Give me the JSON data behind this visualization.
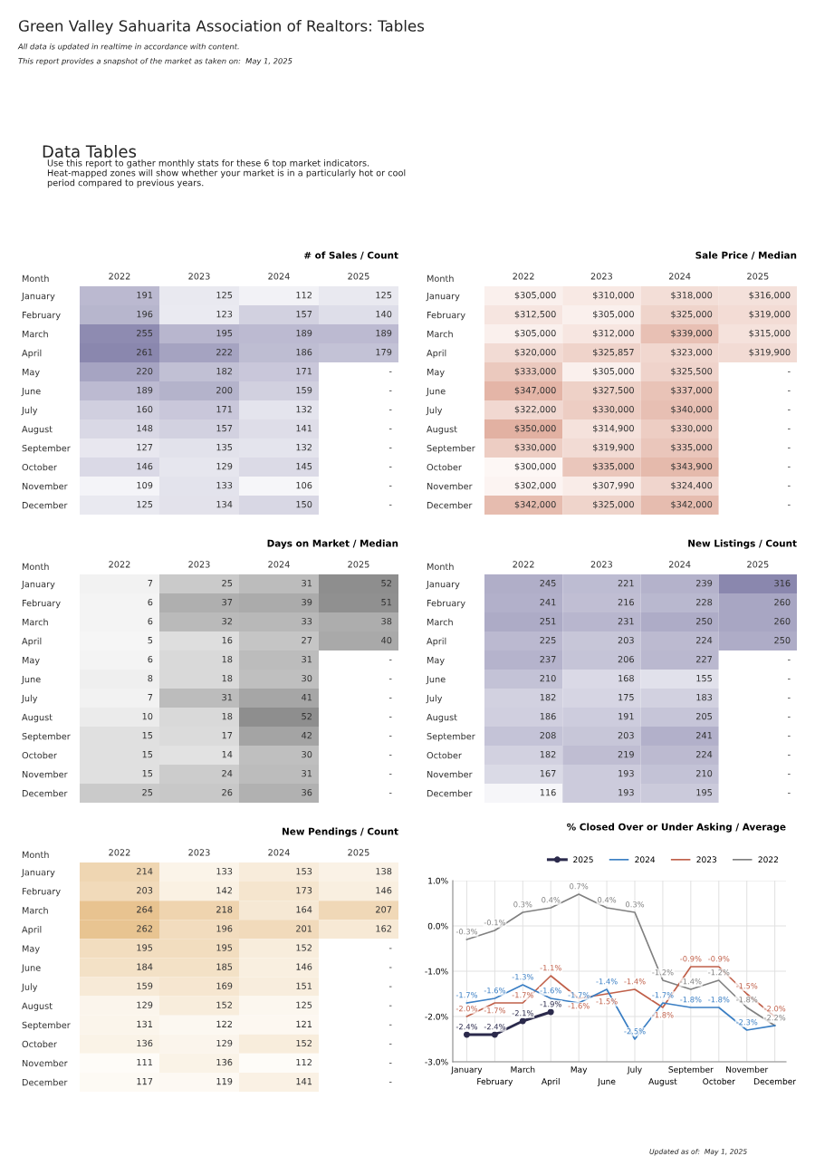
{
  "chart_data": [
    {
      "type": "other",
      "title": "Green Valley Sahuarita Association of Realtors: Tables",
      "annotations": [
        "All data is updated in realtime in accordance with content.",
        "This report provides a snapshot of the market as taken on:  May 1, 2025",
        "Data Tables",
        "Use this report to gather monthly stats for these 6 top market indicators.  Heat-mapped zones will show whether your market is in a particularly hot or cool period compared to previous years.",
        "Updated as of:  May 1, 2025"
      ]
    },
    {
      "type": "heatmap",
      "title": "# of Sales / Count",
      "ylabel": "Month",
      "colors": [
        "#f6f6f9",
        "#8a87ae"
      ],
      "categories": [
        "2022",
        "2023",
        "2024",
        "2025"
      ],
      "y_categories": [
        "January",
        "February",
        "March",
        "April",
        "May",
        "June",
        "July",
        "August",
        "September",
        "October",
        "November",
        "December"
      ],
      "cells": [
        [
          191,
          125,
          112,
          125
        ],
        [
          196,
          123,
          157,
          140
        ],
        [
          255,
          195,
          189,
          189
        ],
        [
          261,
          222,
          186,
          179
        ],
        [
          220,
          182,
          171,
          null
        ],
        [
          189,
          200,
          159,
          null
        ],
        [
          160,
          171,
          132,
          null
        ],
        [
          148,
          157,
          141,
          null
        ],
        [
          127,
          135,
          132,
          null
        ],
        [
          146,
          129,
          145,
          null
        ],
        [
          109,
          133,
          106,
          null
        ],
        [
          125,
          134,
          150,
          null
        ]
      ],
      "cell_labels": [
        [
          "191",
          "125",
          "112",
          "125"
        ],
        [
          "196",
          "123",
          "157",
          "140"
        ],
        [
          "255",
          "195",
          "189",
          "189"
        ],
        [
          "261",
          "222",
          "186",
          "179"
        ],
        [
          "220",
          "182",
          "171",
          "-"
        ],
        [
          "189",
          "200",
          "159",
          "-"
        ],
        [
          "160",
          "171",
          "132",
          "-"
        ],
        [
          "148",
          "157",
          "141",
          "-"
        ],
        [
          "127",
          "135",
          "132",
          "-"
        ],
        [
          "146",
          "129",
          "145",
          "-"
        ],
        [
          "109",
          "133",
          "106",
          "-"
        ],
        [
          "125",
          "134",
          "150",
          "-"
        ]
      ]
    },
    {
      "type": "heatmap",
      "title": "Sale Price / Median",
      "ylabel": "Month",
      "colors": [
        "#fdf7f5",
        "#e2b1a2"
      ],
      "categories": [
        "2022",
        "2023",
        "2024",
        "2025"
      ],
      "y_categories": [
        "January",
        "February",
        "March",
        "April",
        "May",
        "June",
        "July",
        "August",
        "September",
        "October",
        "November",
        "December"
      ],
      "cells": [
        [
          305000,
          310000,
          318000,
          316000
        ],
        [
          312500,
          305000,
          325000,
          319000
        ],
        [
          305000,
          312000,
          339000,
          315000
        ],
        [
          320000,
          325857,
          323000,
          319900
        ],
        [
          333000,
          305000,
          325500,
          null
        ],
        [
          347000,
          327500,
          337000,
          null
        ],
        [
          322000,
          330000,
          340000,
          null
        ],
        [
          350000,
          314900,
          330000,
          null
        ],
        [
          330000,
          319900,
          335000,
          null
        ],
        [
          300000,
          335000,
          343900,
          null
        ],
        [
          302000,
          307990,
          324400,
          null
        ],
        [
          342000,
          325000,
          342000,
          null
        ]
      ],
      "cell_labels": [
        [
          "$305,000",
          "$310,000",
          "$318,000",
          "$316,000"
        ],
        [
          "$312,500",
          "$305,000",
          "$325,000",
          "$319,000"
        ],
        [
          "$305,000",
          "$312,000",
          "$339,000",
          "$315,000"
        ],
        [
          "$320,000",
          "$325,857",
          "$323,000",
          "$319,900"
        ],
        [
          "$333,000",
          "$305,000",
          "$325,500",
          "-"
        ],
        [
          "$347,000",
          "$327,500",
          "$337,000",
          "-"
        ],
        [
          "$322,000",
          "$330,000",
          "$340,000",
          "-"
        ],
        [
          "$350,000",
          "$314,900",
          "$330,000",
          "-"
        ],
        [
          "$330,000",
          "$319,900",
          "$335,000",
          "-"
        ],
        [
          "$300,000",
          "$335,000",
          "$343,900",
          "-"
        ],
        [
          "$302,000",
          "$307,990",
          "$324,400",
          "-"
        ],
        [
          "$342,000",
          "$325,000",
          "$342,000",
          "-"
        ]
      ]
    },
    {
      "type": "heatmap",
      "title": "Days on Market / Median",
      "ylabel": "Month",
      "colors": [
        "#f6f6f6",
        "#8e8e8e"
      ],
      "categories": [
        "2022",
        "2023",
        "2024",
        "2025"
      ],
      "y_categories": [
        "January",
        "February",
        "March",
        "April",
        "May",
        "June",
        "July",
        "August",
        "September",
        "October",
        "November",
        "December"
      ],
      "cells": [
        [
          7,
          25,
          31,
          52
        ],
        [
          6,
          37,
          39,
          51
        ],
        [
          6,
          32,
          33,
          38
        ],
        [
          5,
          16,
          27,
          40
        ],
        [
          6,
          18,
          31,
          null
        ],
        [
          8,
          18,
          30,
          null
        ],
        [
          7,
          31,
          41,
          null
        ],
        [
          10,
          18,
          52,
          null
        ],
        [
          15,
          17,
          42,
          null
        ],
        [
          15,
          14,
          30,
          null
        ],
        [
          15,
          24,
          31,
          null
        ],
        [
          25,
          26,
          36,
          null
        ]
      ],
      "cell_labels": [
        [
          "7",
          "25",
          "31",
          "52"
        ],
        [
          "6",
          "37",
          "39",
          "51"
        ],
        [
          "6",
          "32",
          "33",
          "38"
        ],
        [
          "5",
          "16",
          "27",
          "40"
        ],
        [
          "6",
          "18",
          "31",
          "-"
        ],
        [
          "8",
          "18",
          "30",
          "-"
        ],
        [
          "7",
          "31",
          "41",
          "-"
        ],
        [
          "10",
          "18",
          "52",
          "-"
        ],
        [
          "15",
          "17",
          "42",
          "-"
        ],
        [
          "15",
          "14",
          "30",
          "-"
        ],
        [
          "15",
          "24",
          "31",
          "-"
        ],
        [
          "25",
          "26",
          "36",
          "-"
        ]
      ]
    },
    {
      "type": "heatmap",
      "title": "New Listings / Count",
      "ylabel": "Month",
      "colors": [
        "#f6f6f9",
        "#8a87ae"
      ],
      "categories": [
        "2022",
        "2023",
        "2024",
        "2025"
      ],
      "y_categories": [
        "January",
        "February",
        "March",
        "April",
        "May",
        "June",
        "July",
        "August",
        "September",
        "October",
        "November",
        "December"
      ],
      "cells": [
        [
          245,
          221,
          239,
          316
        ],
        [
          241,
          216,
          228,
          260
        ],
        [
          251,
          231,
          250,
          260
        ],
        [
          225,
          203,
          224,
          250
        ],
        [
          237,
          206,
          227,
          null
        ],
        [
          210,
          168,
          155,
          null
        ],
        [
          182,
          175,
          183,
          null
        ],
        [
          186,
          191,
          205,
          null
        ],
        [
          208,
          203,
          241,
          null
        ],
        [
          182,
          219,
          224,
          null
        ],
        [
          167,
          193,
          210,
          null
        ],
        [
          116,
          193,
          195,
          null
        ]
      ],
      "cell_labels": [
        [
          "245",
          "221",
          "239",
          "316"
        ],
        [
          "241",
          "216",
          "228",
          "260"
        ],
        [
          "251",
          "231",
          "250",
          "260"
        ],
        [
          "225",
          "203",
          "224",
          "250"
        ],
        [
          "237",
          "206",
          "227",
          "-"
        ],
        [
          "210",
          "168",
          "155",
          "-"
        ],
        [
          "182",
          "175",
          "183",
          "-"
        ],
        [
          "186",
          "191",
          "205",
          "-"
        ],
        [
          "208",
          "203",
          "241",
          "-"
        ],
        [
          "182",
          "219",
          "224",
          "-"
        ],
        [
          "167",
          "193",
          "210",
          "-"
        ],
        [
          "116",
          "193",
          "195",
          "-"
        ]
      ]
    },
    {
      "type": "heatmap",
      "title": "New Pendings / Count",
      "ylabel": "Month",
      "colors": [
        "#fefcf8",
        "#e8c390"
      ],
      "categories": [
        "2022",
        "2023",
        "2024",
        "2025"
      ],
      "y_categories": [
        "January",
        "February",
        "March",
        "April",
        "May",
        "June",
        "July",
        "August",
        "September",
        "October",
        "November",
        "December"
      ],
      "cells": [
        [
          214,
          133,
          153,
          138
        ],
        [
          203,
          142,
          173,
          146
        ],
        [
          264,
          218,
          164,
          207
        ],
        [
          262,
          196,
          201,
          162
        ],
        [
          195,
          195,
          152,
          null
        ],
        [
          184,
          185,
          146,
          null
        ],
        [
          159,
          169,
          151,
          null
        ],
        [
          129,
          152,
          125,
          null
        ],
        [
          131,
          122,
          121,
          null
        ],
        [
          136,
          129,
          152,
          null
        ],
        [
          111,
          136,
          112,
          null
        ],
        [
          117,
          119,
          141,
          null
        ]
      ],
      "cell_labels": [
        [
          "214",
          "133",
          "153",
          "138"
        ],
        [
          "203",
          "142",
          "173",
          "146"
        ],
        [
          "264",
          "218",
          "164",
          "207"
        ],
        [
          "262",
          "196",
          "201",
          "162"
        ],
        [
          "195",
          "195",
          "152",
          "-"
        ],
        [
          "184",
          "185",
          "146",
          "-"
        ],
        [
          "159",
          "169",
          "151",
          "-"
        ],
        [
          "129",
          "152",
          "125",
          "-"
        ],
        [
          "131",
          "122",
          "121",
          "-"
        ],
        [
          "136",
          "129",
          "152",
          "-"
        ],
        [
          "111",
          "136",
          "112",
          "-"
        ],
        [
          "117",
          "119",
          "141",
          "-"
        ]
      ]
    },
    {
      "type": "line",
      "title": "% Closed Over or Under Asking / Average",
      "legend": "top",
      "grid": true,
      "categories": [
        "January",
        "February",
        "March",
        "April",
        "May",
        "June",
        "July",
        "August",
        "September",
        "October",
        "November",
        "December"
      ],
      "ylim": [
        -3,
        1
      ],
      "yticks": [
        {
          "value": -3,
          "label": "-3.0%"
        },
        {
          "value": -2,
          "label": "-2.0%"
        },
        {
          "value": -1,
          "label": "-1.0%"
        },
        {
          "value": 0,
          "label": "0.0%"
        },
        {
          "value": 1,
          "label": "1.0%"
        }
      ],
      "series": [
        {
          "name": "2025",
          "color": "#2b2a4c",
          "marker": "circle",
          "values": [
            -2.4,
            -2.4,
            -2.1,
            -1.9,
            null,
            null,
            null,
            null,
            null,
            null,
            null,
            null
          ],
          "value_labels": [
            "-2.4%",
            "-2.4%",
            "-2.1%",
            "-1.9%",
            null,
            null,
            null,
            null,
            null,
            null,
            null,
            null
          ]
        },
        {
          "name": "2024",
          "color": "#3b7fc4",
          "values": [
            -1.7,
            -1.6,
            -1.3,
            -1.6,
            -1.7,
            -1.4,
            -2.5,
            -1.7,
            -1.8,
            -1.8,
            -2.3,
            -2.2
          ],
          "value_labels": [
            "-1.7%",
            "-1.6%",
            "-1.3%",
            "-1.6%",
            "-1.7%",
            "-1.4%",
            "-2.5%",
            "-1.7%",
            "-1.8%",
            "-1.8%",
            "-2.3%",
            null
          ]
        },
        {
          "name": "2023",
          "color": "#c0604a",
          "values": [
            -2.0,
            -1.7,
            -1.7,
            -1.1,
            -1.6,
            -1.5,
            -1.4,
            -1.8,
            -0.9,
            -0.9,
            -1.5,
            -2.0
          ],
          "value_labels": [
            "-2.0%",
            "-1.7%",
            "-1.7%",
            "-1.1%",
            "-1.6%",
            "-1.5%",
            "-1.4%",
            "-1.8%",
            "-0.9%",
            "-0.9%",
            "-1.5%",
            "-2.0%"
          ]
        },
        {
          "name": "2022",
          "color": "#808080",
          "values": [
            -0.3,
            -0.1,
            0.3,
            0.4,
            0.7,
            0.4,
            0.3,
            -1.2,
            -1.4,
            -1.2,
            -1.8,
            -2.2
          ],
          "value_labels": [
            "-0.3%",
            "-0.1%",
            "0.3%",
            "0.4%",
            "0.7%",
            "0.4%",
            "0.3%",
            "-1.2%",
            "-1.4%",
            "-1.2%",
            "-1.8%",
            "-2.2%"
          ]
        }
      ]
    }
  ]
}
